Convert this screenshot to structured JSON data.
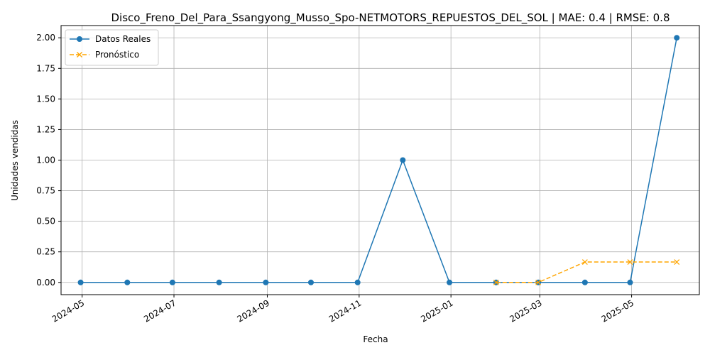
{
  "chart_data": {
    "type": "line",
    "title": "Disco_Freno_Del_Para_Ssangyong_Musso_Spo-NETMOTORS_REPUESTOS_DEL_SOL | MAE: 0.4 | RMSE: 0.8",
    "xlabel": "Fecha",
    "ylabel": "Unidades vendidas",
    "xlim": [
      "2024-04-17",
      "2025-06-15"
    ],
    "ylim": [
      -0.1,
      2.1
    ],
    "grid": true,
    "legend_position": "top-left",
    "x_ticks": [
      "2024-05",
      "2024-07",
      "2024-09",
      "2024-11",
      "2025-01",
      "2025-03",
      "2025-05"
    ],
    "x_tick_dates": [
      "2024-05-01",
      "2024-07-01",
      "2024-09-01",
      "2024-11-01",
      "2025-01-01",
      "2025-03-01",
      "2025-05-01"
    ],
    "y_ticks": [
      "0.00",
      "0.25",
      "0.50",
      "0.75",
      "1.00",
      "1.25",
      "1.50",
      "1.75",
      "2.00"
    ],
    "series": [
      {
        "name": "Datos Reales",
        "color": "#1f77b4",
        "marker": "circle",
        "line_style": "solid",
        "x": [
          "2024-04-30",
          "2024-05-31",
          "2024-06-30",
          "2024-07-31",
          "2024-08-31",
          "2024-09-30",
          "2024-10-31",
          "2024-11-30",
          "2024-12-31",
          "2025-01-31",
          "2025-02-28",
          "2025-03-31",
          "2025-04-30",
          "2025-05-31"
        ],
        "values": [
          0,
          0,
          0,
          0,
          0,
          0,
          0,
          1,
          0,
          0,
          0,
          0,
          0,
          2
        ]
      },
      {
        "name": "Pronóstico",
        "color": "#ffa500",
        "marker": "x",
        "line_style": "dashed",
        "x": [
          "2025-01-31",
          "2025-02-28",
          "2025-03-31",
          "2025-04-30",
          "2025-05-31"
        ],
        "values": [
          0,
          0,
          0.1667,
          0.1667,
          0.1667
        ]
      }
    ]
  }
}
